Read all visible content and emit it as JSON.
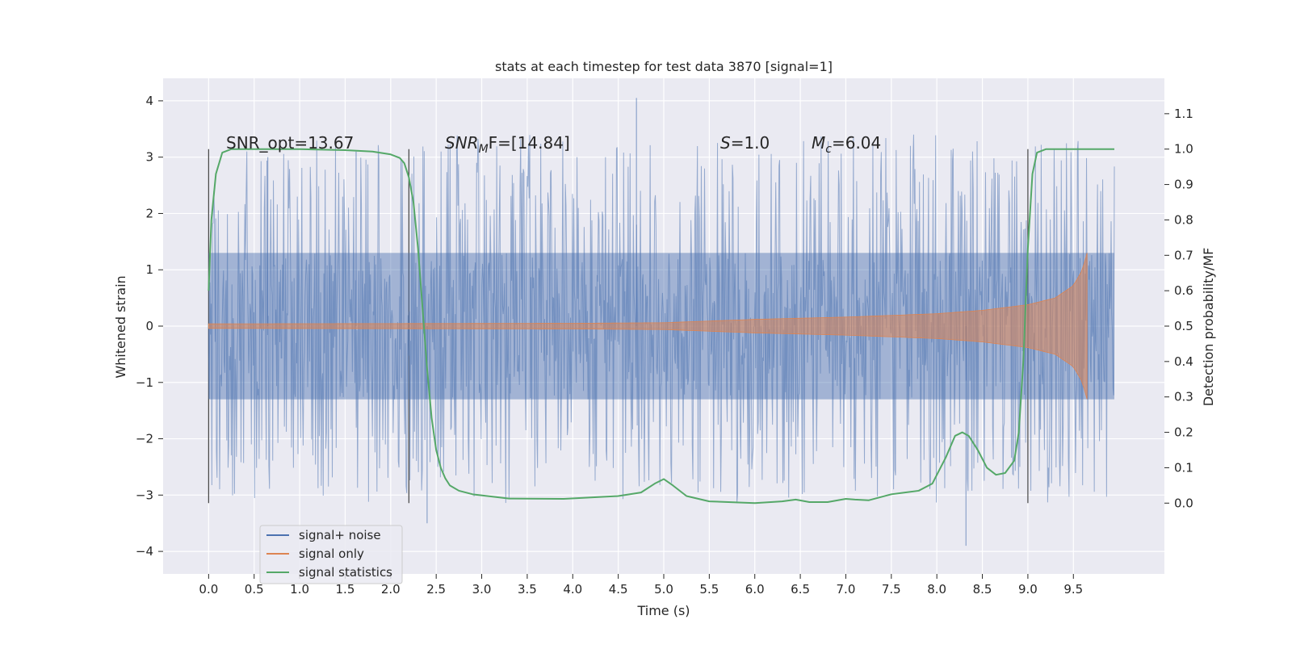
{
  "chart_data": {
    "type": "line",
    "title": "stats at each timestep for test data 3870 [signal=1]",
    "xlabel": "Time (s)",
    "ylabel_left": "Whitened strain",
    "ylabel_right": "Detection probability/MF",
    "xlim": [
      -0.5,
      10.5
    ],
    "ylim_left": [
      -4.4,
      4.4
    ],
    "ylim_right": [
      -0.2,
      1.2
    ],
    "xticks": [
      0.0,
      0.5,
      1.0,
      1.5,
      2.0,
      2.5,
      3.0,
      3.5,
      4.0,
      4.5,
      5.0,
      5.5,
      6.0,
      6.5,
      7.0,
      7.5,
      8.0,
      8.5,
      9.0,
      9.5
    ],
    "xtick_labels": [
      "0.0",
      "0.5",
      "1.0",
      "1.5",
      "2.0",
      "2.5",
      "3.0",
      "3.5",
      "4.0",
      "4.5",
      "5.0",
      "5.5",
      "6.0",
      "6.5",
      "7.0",
      "7.5",
      "8.0",
      "8.5",
      "9.0",
      "9.5"
    ],
    "yticks_left": [
      -4,
      -3,
      -2,
      -1,
      0,
      1,
      2,
      3,
      4
    ],
    "ytick_labels_left": [
      "−4",
      "−3",
      "−2",
      "−1",
      "0",
      "1",
      "2",
      "3",
      "4"
    ],
    "yticks_right": [
      0.0,
      0.1,
      0.2,
      0.3,
      0.4,
      0.5,
      0.6,
      0.7,
      0.8,
      0.9,
      1.0,
      1.1
    ],
    "ytick_labels_right": [
      "0.0",
      "0.1",
      "0.2",
      "0.3",
      "0.4",
      "0.5",
      "0.6",
      "0.7",
      "0.8",
      "0.9",
      "1.0",
      "1.1"
    ],
    "grid": true,
    "legend_position": "lower-left",
    "annotations": {
      "snr_opt": "SNR_opt=13.67",
      "snr_mf_prefix": "SNR",
      "snr_mf_sub": "M",
      "snr_mf_suffix": "F=[14.84]",
      "s_prefix": "S",
      "s_suffix": "=1.0",
      "mc_prefix": "M",
      "mc_sub": "c",
      "mc_suffix": "=6.04"
    },
    "vertical_lines_x": [
      0.0,
      2.2,
      9.0
    ],
    "series": [
      {
        "name": "signal+ noise",
        "color": "#4c72b0",
        "axis": "left",
        "x_range": [
          0.0,
          9.95
        ],
        "core_amplitude": 1.3,
        "peak_range": [
          1.7,
          3.4
        ],
        "extreme_points": [
          [
            4.7,
            4.05
          ],
          [
            8.32,
            -3.9
          ],
          [
            2.4,
            -3.5
          ],
          [
            0.65,
            3.0
          ],
          [
            1.62,
            3.1
          ]
        ]
      },
      {
        "name": "signal only",
        "color": "#dd8452",
        "axis": "left",
        "chirp": {
          "start": 0.0,
          "end": 9.65
        },
        "amplitude": [
          [
            0.0,
            0.04
          ],
          [
            4.0,
            0.05
          ],
          [
            5.0,
            0.06
          ],
          [
            6.0,
            0.12
          ],
          [
            7.0,
            0.16
          ],
          [
            8.0,
            0.22
          ],
          [
            8.5,
            0.28
          ],
          [
            9.0,
            0.38
          ],
          [
            9.3,
            0.5
          ],
          [
            9.5,
            0.72
          ],
          [
            9.6,
            1.0
          ],
          [
            9.65,
            1.3
          ]
        ]
      },
      {
        "name": "signal statistics",
        "color": "#55a868",
        "axis": "right",
        "x": [
          0.0,
          0.03,
          0.08,
          0.15,
          0.25,
          0.4,
          1.0,
          1.5,
          1.8,
          2.0,
          2.1,
          2.15,
          2.2,
          2.25,
          2.3,
          2.35,
          2.4,
          2.45,
          2.5,
          2.55,
          2.6,
          2.65,
          2.75,
          2.9,
          3.3,
          3.9,
          4.5,
          4.75,
          4.9,
          5.0,
          5.1,
          5.25,
          5.5,
          6.0,
          6.3,
          6.45,
          6.6,
          6.8,
          7.0,
          7.1,
          7.25,
          7.5,
          7.65,
          7.8,
          7.95,
          8.1,
          8.2,
          8.28,
          8.35,
          8.45,
          8.55,
          8.65,
          8.75,
          8.85,
          8.9,
          8.95,
          9.0,
          9.05,
          9.1,
          9.2,
          9.4,
          9.95
        ],
        "y": [
          0.6,
          0.8,
          0.93,
          0.99,
          1.0,
          1.0,
          1.0,
          0.997,
          0.993,
          0.985,
          0.975,
          0.96,
          0.92,
          0.85,
          0.72,
          0.55,
          0.38,
          0.24,
          0.15,
          0.1,
          0.07,
          0.05,
          0.035,
          0.025,
          0.013,
          0.012,
          0.02,
          0.03,
          0.055,
          0.068,
          0.05,
          0.02,
          0.005,
          0.0,
          0.005,
          0.01,
          0.003,
          0.003,
          0.012,
          0.01,
          0.008,
          0.025,
          0.03,
          0.035,
          0.055,
          0.13,
          0.19,
          0.2,
          0.19,
          0.15,
          0.1,
          0.08,
          0.085,
          0.12,
          0.2,
          0.4,
          0.72,
          0.93,
          0.99,
          1.0,
          1.0,
          1.0
        ]
      }
    ]
  }
}
